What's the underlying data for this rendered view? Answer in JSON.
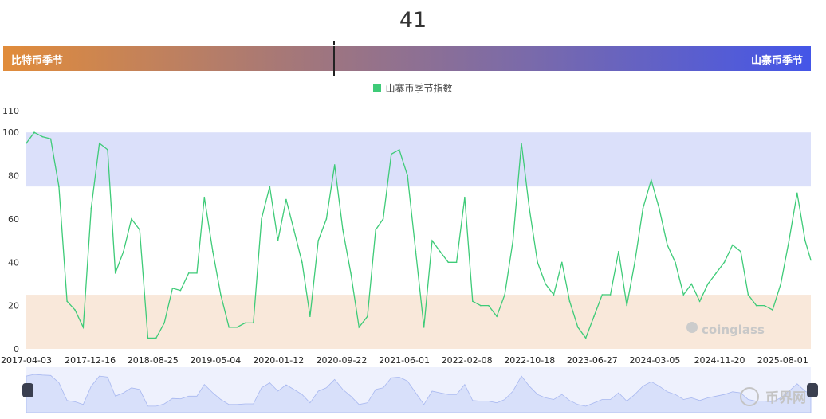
{
  "header": {
    "current_value": "41",
    "left_label": "比特币季节",
    "right_label": "山寨币季节",
    "gauge_position_percent": 41
  },
  "colors": {
    "line": "#3ecb78",
    "alt_band": "#dbe0fa",
    "btc_band": "#f9e8da",
    "navigator_fill": "#d8e0fa",
    "navigator_line": "#a8b8f0",
    "gradient_start": "#e18c3b",
    "gradient_end": "#4456e8"
  },
  "watermarks": {
    "chart": "coinglass",
    "corner": "币界网"
  },
  "chart_data": {
    "type": "line",
    "legend": {
      "position": "top-center",
      "entries": [
        "山寨币季节指数"
      ]
    },
    "ylim": [
      0,
      110
    ],
    "yticks": [
      0,
      20,
      40,
      60,
      80,
      100,
      110
    ],
    "xticks": [
      "2017-04-03",
      "2017-12-16",
      "2018-08-25",
      "2019-05-04",
      "2020-01-12",
      "2020-09-22",
      "2021-06-01",
      "2022-02-08",
      "2022-10-18",
      "2023-06-27",
      "2024-03-05",
      "2024-11-20",
      "2025-08-01"
    ],
    "bands": [
      {
        "from": 75,
        "to": 100,
        "meaning": "山寨币季节"
      },
      {
        "from": 0,
        "to": 25,
        "meaning": "比特币季节"
      }
    ],
    "series": [
      {
        "name": "山寨币季节指数",
        "x": [
          "2017-04-03",
          "2017-05-05",
          "2017-06-07",
          "2017-07-10",
          "2017-08-12",
          "2017-09-14",
          "2017-10-16",
          "2017-11-18",
          "2017-12-20",
          "2018-01-22",
          "2018-02-24",
          "2018-03-27",
          "2018-04-29",
          "2018-05-31",
          "2018-07-03",
          "2018-08-05",
          "2018-09-07",
          "2018-10-10",
          "2018-11-12",
          "2018-12-14",
          "2019-01-16",
          "2019-02-18",
          "2019-03-20",
          "2019-04-23",
          "2019-05-25",
          "2019-06-27",
          "2019-07-29",
          "2019-08-31",
          "2019-10-03",
          "2019-11-05",
          "2019-12-08",
          "2020-01-10",
          "2020-02-12",
          "2020-03-14",
          "2020-04-16",
          "2020-05-18",
          "2020-06-20",
          "2020-07-23",
          "2020-08-25",
          "2020-09-27",
          "2020-10-29",
          "2020-12-01",
          "2021-01-04",
          "2021-02-06",
          "2021-03-08",
          "2021-04-10",
          "2021-05-12",
          "2021-06-14",
          "2021-07-17",
          "2021-08-19",
          "2021-09-21",
          "2021-10-23",
          "2021-11-25",
          "2021-12-28",
          "2022-01-30",
          "2022-03-03",
          "2022-04-04",
          "2022-05-06",
          "2022-06-08",
          "2022-07-10",
          "2022-08-12",
          "2022-09-15",
          "2022-10-17",
          "2022-11-19",
          "2022-12-21",
          "2023-01-23",
          "2023-02-25",
          "2023-03-28",
          "2023-04-30",
          "2023-06-01",
          "2023-07-04",
          "2023-08-06",
          "2023-09-08",
          "2023-10-11",
          "2023-11-13",
          "2023-12-15",
          "2024-01-17",
          "2024-02-19",
          "2024-03-22",
          "2024-04-24",
          "2024-05-26",
          "2024-06-28",
          "2024-07-30",
          "2024-09-01",
          "2024-10-04",
          "2024-11-06",
          "2024-12-09",
          "2025-01-11",
          "2025-02-13",
          "2025-03-15",
          "2025-04-17",
          "2025-05-19",
          "2025-06-21",
          "2025-07-24",
          "2025-08-26",
          "2025-09-28",
          "2025-10-30",
          "2025-11-22"
        ],
        "values": [
          95,
          100,
          98,
          97,
          75,
          22,
          18,
          10,
          65,
          95,
          92,
          35,
          45,
          60,
          55,
          5,
          5,
          12,
          28,
          27,
          35,
          35,
          70,
          45,
          25,
          10,
          10,
          12,
          12,
          60,
          75,
          50,
          69,
          55,
          40,
          15,
          50,
          60,
          85,
          55,
          35,
          10,
          15,
          55,
          60,
          90,
          92,
          80,
          45,
          10,
          50,
          45,
          40,
          40,
          70,
          22,
          20,
          20,
          15,
          25,
          50,
          95,
          65,
          40,
          30,
          25,
          40,
          22,
          10,
          5,
          15,
          25,
          25,
          45,
          20,
          40,
          65,
          78,
          65,
          48,
          40,
          25,
          30,
          22,
          30,
          35,
          40,
          48,
          45,
          25,
          20,
          20,
          18,
          30,
          50,
          72,
          50,
          41
        ]
      }
    ]
  }
}
